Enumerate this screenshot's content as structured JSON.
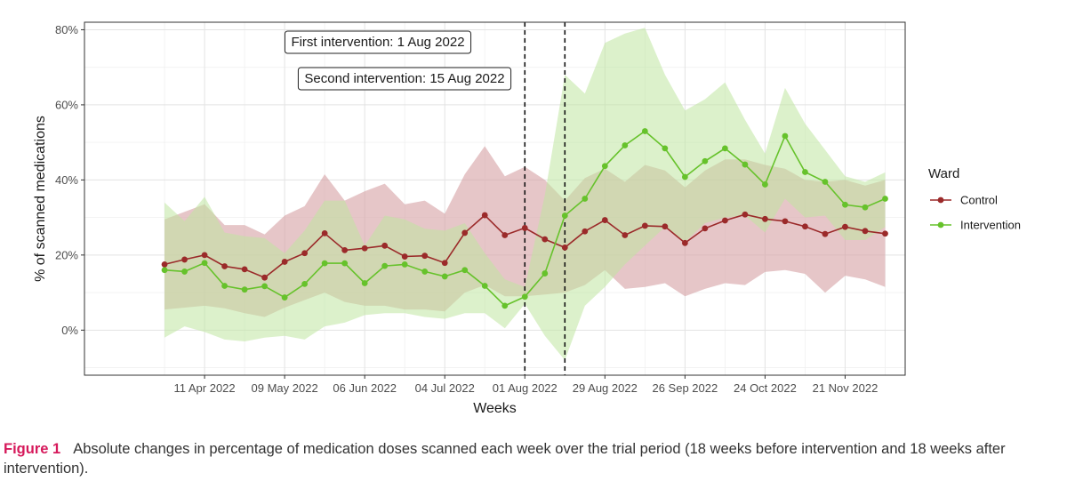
{
  "chart_data": {
    "type": "line",
    "title": "",
    "xlabel": "Weeks",
    "ylabel": "% of scanned medications",
    "ylim": [
      -12,
      82
    ],
    "y_ticks": [
      0,
      20,
      40,
      60,
      80
    ],
    "y_tick_labels": [
      "0%",
      "20%",
      "40%",
      "60%",
      "80%"
    ],
    "x_range": [
      -5,
      36
    ],
    "x_ticks": [
      1,
      5,
      9,
      13,
      17,
      21,
      25,
      29,
      33
    ],
    "x_tick_labels": [
      "11 Apr 2022",
      "09 May 2022",
      "06 Jun 2022",
      "04 Jul 2022",
      "01 Aug 2022",
      "29 Aug 2022",
      "26 Sep 2022",
      "24 Oct 2022",
      "21 Nov 2022"
    ],
    "x_description": "week index, 0 = week of 4 Apr 2022, 1 = 11 Apr 2022 (weekly)",
    "weeks": [
      -1,
      0,
      1,
      2,
      3,
      4,
      5,
      6,
      7,
      8,
      9,
      10,
      11,
      12,
      13,
      14,
      15,
      16,
      17,
      18,
      19,
      20,
      21,
      22,
      23,
      24,
      25,
      26,
      27,
      28,
      29,
      30,
      31,
      32,
      33,
      34,
      35
    ],
    "series": [
      {
        "name": "Control",
        "color": "#9b2a2a",
        "band_color": "#d6a3a6",
        "values": [
          17.5,
          18.8,
          20.0,
          17.0,
          16.2,
          14.0,
          18.2,
          20.5,
          25.8,
          21.3,
          21.8,
          22.5,
          19.6,
          19.8,
          17.9,
          25.9,
          30.6,
          25.3,
          27.2,
          24.2,
          22.0,
          26.3,
          29.3,
          25.3,
          27.8,
          27.6,
          23.2,
          27.1,
          29.2,
          30.8,
          29.6,
          29.0,
          27.6,
          25.6,
          27.5,
          26.4,
          25.7
        ],
        "lower": [
          5.5,
          6.0,
          6.5,
          5.8,
          4.5,
          3.5,
          6.0,
          8.0,
          10.0,
          7.5,
          6.5,
          6.5,
          5.5,
          5.5,
          5.0,
          10.0,
          12.0,
          9.0,
          9.0,
          9.5,
          10.0,
          12.0,
          16.0,
          11.0,
          11.5,
          12.5,
          9.0,
          11.0,
          12.5,
          12.0,
          15.5,
          16.0,
          15.0,
          10.0,
          14.5,
          13.5,
          11.5
        ],
        "upper": [
          29.5,
          31.5,
          33.5,
          28.0,
          28.0,
          25.5,
          30.5,
          33.0,
          41.5,
          34.5,
          37.0,
          39.0,
          33.5,
          34.5,
          31.0,
          41.5,
          49.0,
          41.0,
          43.5,
          40.0,
          34.5,
          40.5,
          43.0,
          39.5,
          44.0,
          42.5,
          38.0,
          42.5,
          45.5,
          45.5,
          44.0,
          43.0,
          40.0,
          39.5,
          40.0,
          38.5,
          40.0
        ]
      },
      {
        "name": "Intervention",
        "color": "#66c22b",
        "band_color": "#bfe6a1",
        "values": [
          16.0,
          15.6,
          17.9,
          11.8,
          10.8,
          11.7,
          8.7,
          12.3,
          17.8,
          17.8,
          12.5,
          17.1,
          17.5,
          15.6,
          14.3,
          16.0,
          11.8,
          6.5,
          8.9,
          15.1,
          30.5,
          35.0,
          43.7,
          49.2,
          53.0,
          48.4,
          40.8,
          45.0,
          48.4,
          44.1,
          38.8,
          51.7,
          42.1,
          39.5,
          33.4,
          32.7,
          35.0
        ],
        "lower": [
          -2.0,
          1.0,
          -0.5,
          -2.5,
          -3.0,
          -2.0,
          -1.5,
          -2.5,
          1.0,
          2.0,
          4.0,
          4.5,
          4.5,
          3.5,
          3.0,
          4.5,
          4.5,
          0.5,
          7.0,
          -1.5,
          -8.0,
          6.5,
          11.5,
          17.5,
          22.5,
          27.5,
          23.5,
          28.5,
          30.0,
          30.5,
          26.0,
          35.0,
          30.0,
          30.5,
          24.0,
          24.0,
          27.5
        ],
        "upper": [
          34.0,
          29.0,
          35.5,
          26.0,
          25.0,
          24.5,
          20.5,
          26.5,
          34.5,
          34.5,
          22.5,
          30.5,
          29.5,
          27.0,
          26.5,
          28.5,
          20.5,
          13.5,
          11.5,
          36.0,
          68.0,
          63.0,
          76.5,
          79.0,
          80.5,
          68.0,
          58.5,
          61.5,
          66.0,
          56.0,
          47.0,
          64.5,
          55.0,
          48.0,
          41.0,
          39.5,
          42.0
        ]
      }
    ],
    "vlines": [
      {
        "x": 17,
        "label": "First intervention: 1 Aug 2022"
      },
      {
        "x": 19,
        "label": "Second intervention: 15 Aug 2022"
      }
    ],
    "legend": {
      "title": "Ward",
      "position": "right",
      "items": [
        "Control",
        "Intervention"
      ]
    },
    "grid": true
  },
  "caption": {
    "label": "Figure 1",
    "text": "Absolute changes in percentage of medication doses scanned each week over the trial period (18 weeks before intervention and 18 weeks after intervention)."
  }
}
